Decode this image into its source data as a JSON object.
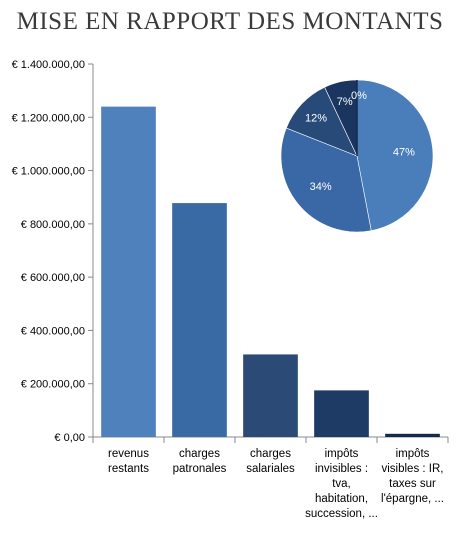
{
  "chart_data": {
    "type": "bar",
    "title": "MISE EN RAPPORT DES MONTANTS",
    "xlabel": "",
    "ylabel": "",
    "ylim": [
      0,
      1400000
    ],
    "yticks": [
      {
        "value": 0,
        "label": "€ 0,00"
      },
      {
        "value": 200000,
        "label": "€ 200.000,00"
      },
      {
        "value": 400000,
        "label": "€ 400.000,00"
      },
      {
        "value": 600000,
        "label": "€ 600.000,00"
      },
      {
        "value": 800000,
        "label": "€ 800.000,00"
      },
      {
        "value": 1000000,
        "label": "€ 1.000.000,00"
      },
      {
        "value": 1200000,
        "label": "€ 1.200.000,00"
      },
      {
        "value": 1400000,
        "label": "€ 1.400.000,00"
      }
    ],
    "categories": [
      [
        "revenus",
        "restants"
      ],
      [
        "charges",
        "patronales"
      ],
      [
        "charges",
        "salariales"
      ],
      [
        "impôts",
        "invisibles :",
        "tva,",
        "habitation,",
        "succession, ..."
      ],
      [
        "impôts",
        "visibles : IR,",
        "taxes sur",
        "l'épargne, ..."
      ]
    ],
    "values": [
      1240000,
      878000,
      310000,
      175000,
      12000
    ],
    "colors": [
      "#4f81bd",
      "#3a6aa3",
      "#2c4a76",
      "#1d3b64",
      "#142a4c"
    ],
    "grid": false,
    "legend": "none",
    "inset_pie": {
      "type": "pie",
      "values": [
        47,
        34,
        12,
        7,
        0
      ],
      "labels": [
        "47%",
        "34%",
        "12%",
        "7%",
        "0%"
      ],
      "colors": [
        "#4a7ebb",
        "#3a68a6",
        "#284a78",
        "#1a3560",
        "#142a4c"
      ]
    }
  }
}
